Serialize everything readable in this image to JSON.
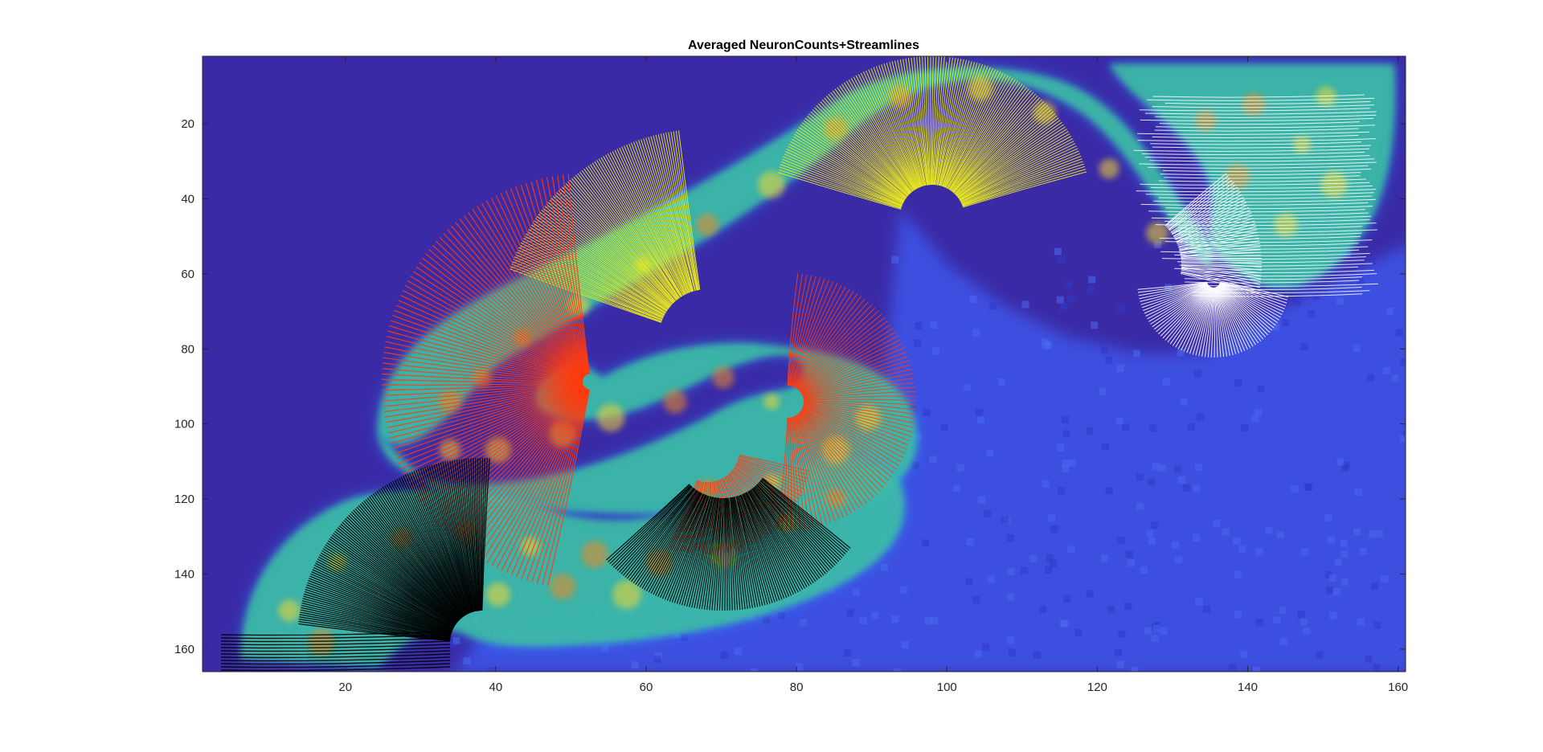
{
  "chart_data": {
    "type": "heatmap",
    "title": "Averaged NeuronCounts+Streamlines",
    "xlabel": "",
    "ylabel": "",
    "xlim": [
      1,
      161
    ],
    "ylim": [
      2,
      166
    ],
    "y_reversed": true,
    "x_ticks": [
      20,
      40,
      60,
      80,
      100,
      120,
      140,
      160
    ],
    "y_ticks": [
      20,
      40,
      60,
      80,
      100,
      120,
      140,
      160
    ],
    "x_tick_labels": [
      "20",
      "40",
      "60",
      "80",
      "100",
      "120",
      "140",
      "160"
    ],
    "y_tick_labels": [
      "20",
      "40",
      "60",
      "80",
      "100",
      "120",
      "140",
      "160"
    ],
    "grid": false,
    "colormap": "parula",
    "background_color": "#3a2aa6",
    "tissue_color": "#3d4fe0",
    "streamline_series": [
      {
        "color": "#ffffff",
        "region_center": [
          140,
          40
        ]
      },
      {
        "color": "#f0f01a",
        "region_center": [
          105,
          25
        ]
      },
      {
        "color": "#ff3b10",
        "region_center": [
          55,
          90
        ]
      },
      {
        "color": "#000000",
        "region_center": [
          40,
          145
        ]
      }
    ]
  }
}
